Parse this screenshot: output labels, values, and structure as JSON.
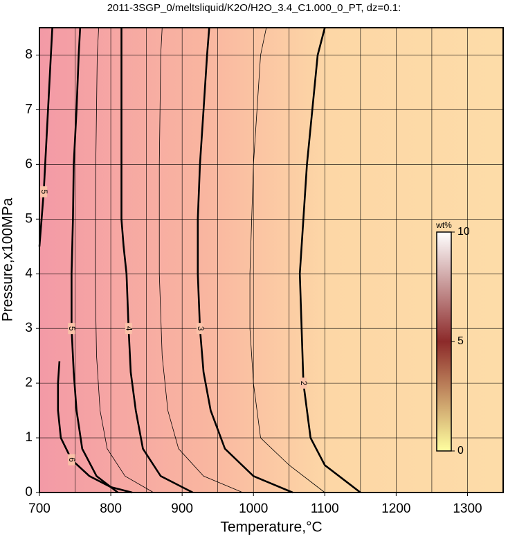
{
  "chart_data": {
    "type": "contour",
    "title": "2011-3SGP_0/meltsliquid/K2O/H2O_3.4_C1.000_0_PT, dz=0.1:",
    "x_label": "Temperature,°C",
    "y_label": "Pressure,x100MPa",
    "xlim": [
      700,
      1350
    ],
    "ylim": [
      0,
      8.5
    ],
    "xticks": [
      700,
      800,
      900,
      1000,
      1100,
      1200,
      1300
    ],
    "yticks": [
      0,
      1,
      2,
      3,
      4,
      5,
      6,
      7,
      8
    ],
    "xgrid": [
      750,
      850,
      950,
      1050,
      1150,
      1250
    ],
    "grid": true,
    "contours": [
      {
        "level": 3,
        "x": [
          1055,
          1000,
          960,
          940,
          930,
          925,
          922,
          922,
          925,
          930,
          935,
          938
        ],
        "y": [
          0,
          0.3,
          0.8,
          1.5,
          2.2,
          3,
          4,
          5,
          6,
          7,
          8,
          8.5
        ]
      },
      {
        "level": 4,
        "x": [
          915,
          870,
          845,
          835,
          828,
          825,
          822,
          818,
          815,
          815,
          815,
          815
        ],
        "y": [
          0,
          0.3,
          0.8,
          1.5,
          2.2,
          3,
          4,
          4.5,
          5,
          6,
          8,
          8.5
        ]
      },
      {
        "level": 5,
        "x": [
          810,
          780,
          760,
          752,
          748,
          745,
          745,
          747,
          748,
          752,
          755,
          757
        ],
        "y": [
          0,
          0.3,
          0.8,
          1.5,
          2.2,
          3,
          4,
          5,
          6,
          7,
          8,
          8.5
        ]
      },
      {
        "level": 6,
        "x": [
          830,
          800,
          770,
          745,
          730,
          726,
          726,
          728
        ],
        "y": [
          0,
          0.1,
          0.3,
          0.6,
          1.0,
          1.5,
          2.0,
          2.4
        ]
      },
      {
        "level": 5,
        "x": [
          700,
          706,
          712,
          718
        ],
        "y": [
          4.5,
          5.5,
          7,
          8.5
        ]
      },
      {
        "level": 2,
        "x": [
          1150,
          1100,
          1080,
          1070,
          1065,
          1075,
          1090,
          1100
        ],
        "y": [
          0,
          0.5,
          1,
          2,
          4,
          6,
          8,
          8.5
        ]
      },
      {
        "level": 2.5,
        "x": [
          1100,
          1050,
          1010,
          1000,
          995,
          995,
          1000,
          1010,
          1018
        ],
        "y": [
          0,
          0.5,
          1,
          2,
          3,
          4,
          6,
          8,
          8.5
        ]
      },
      {
        "level": 3.5,
        "x": [
          985,
          930,
          895,
          880,
          872,
          868,
          868,
          870,
          872
        ],
        "y": [
          0,
          0.3,
          0.8,
          1.5,
          2.5,
          4,
          6,
          8,
          8.5
        ]
      },
      {
        "level": 4.5,
        "x": [
          860,
          820,
          795,
          785,
          780,
          778,
          779,
          781,
          783
        ],
        "y": [
          0,
          0.3,
          0.8,
          1.5,
          2.5,
          4,
          6,
          8,
          8.5
        ]
      }
    ],
    "colorbar": {
      "label": "wt%",
      "lim": [
        0,
        10
      ],
      "ticks": [
        0,
        5,
        10
      ],
      "colors": [
        "#ffffa0",
        "#8c2a2a",
        "#ffffff"
      ]
    }
  }
}
